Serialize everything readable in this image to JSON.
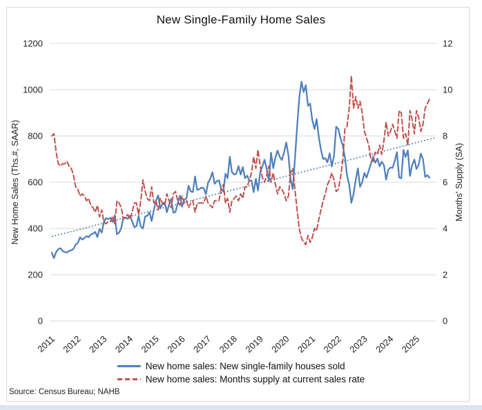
{
  "chart_data": {
    "type": "line",
    "title": "New Single-Family Home Sales",
    "source": "Source: Census Bureau; NAHB",
    "x": {
      "unit": "month",
      "start": "2011-01",
      "end": "2025-07",
      "tick_labels": [
        "2011",
        "2012",
        "2013",
        "2014",
        "2015",
        "2016",
        "2017",
        "2018",
        "2019",
        "2020",
        "2021",
        "2022",
        "2023",
        "2024",
        "2025"
      ]
    },
    "left_axis": {
      "label": "New Home Sales (Ths.#, SAAR)",
      "ticks": [
        0,
        200,
        400,
        600,
        800,
        1000,
        1200
      ],
      "lim": [
        0,
        1200
      ]
    },
    "right_axis": {
      "label": "Months' Supply (SA)",
      "ticks": [
        0,
        2,
        4,
        6,
        8,
        10,
        12
      ],
      "lim": [
        0,
        12
      ]
    },
    "grid": true,
    "legend_position": "bottom-center",
    "series": [
      {
        "name": "New home sales: New single-family houses sold",
        "axis": "left",
        "line_style": "solid",
        "color": "#4f81bd",
        "monthly_values": [
          295,
          272,
          298,
          310,
          315,
          302,
          298,
          296,
          303,
          306,
          312,
          330,
          337,
          362,
          352,
          358,
          367,
          362,
          374,
          378,
          385,
          363,
          398,
          382,
          428,
          445,
          440,
          446,
          429,
          457,
          375,
          382,
          402,
          448,
          445,
          442,
          455,
          432,
          405,
          410,
          455,
          408,
          400,
          452,
          455,
          470,
          432,
          480,
          520,
          543,
          487,
          508,
          512,
          470,
          503,
          528,
          468,
          472,
          508,
          542,
          494,
          525,
          530,
          585,
          560,
          558,
          625,
          567,
          570,
          577,
          573,
          548,
          598,
          615,
          643,
          593,
          605,
          608,
          572,
          560,
          637,
          618,
          710,
          643,
          633,
          637,
          670,
          633,
          665,
          618,
          628,
          607,
          607,
          557,
          615,
          564,
          644,
          668,
          697,
          656,
          604,
          728,
          661,
          706,
          737,
          710,
          696,
          729,
          772,
          716,
          612,
          570,
          700,
          838,
          965,
          1035,
          990,
          1020,
          930,
          940,
          870,
          830,
          873,
          795,
          740,
          700,
          704,
          686,
          725,
          668,
          715,
          840,
          830,
          790,
          760,
          710,
          630,
          590,
          511,
          550,
          610,
          660,
          580,
          600,
          640,
          620,
          650,
          679,
          710,
          684,
          702,
          669,
          689,
          674,
          611,
          654,
          664,
          662,
          693,
          730,
          621,
          617,
          739,
          709,
          738,
          627,
          674,
          698,
          657,
          676,
          724,
          700,
          623,
          630,
          620
        ]
      },
      {
        "name": "New home sales: Months supply at current sales rate",
        "axis": "right",
        "line_style": "dashed",
        "color": "#c0504d",
        "monthly_values": [
          8.0,
          8.1,
          7.3,
          6.8,
          6.7,
          6.8,
          6.8,
          6.9,
          6.7,
          6.6,
          6.3,
          5.8,
          5.7,
          5.4,
          5.5,
          5.4,
          5.2,
          5.3,
          5.0,
          4.9,
          4.7,
          5.0,
          4.5,
          4.8,
          4.3,
          4.2,
          4.3,
          4.3,
          4.5,
          4.2,
          5.2,
          5.1,
          4.9,
          4.4,
          4.5,
          4.6,
          4.4,
          4.7,
          5.1,
          5.1,
          4.6,
          5.2,
          6.1,
          5.6,
          5.3,
          5.2,
          5.8,
          5.1,
          5.2,
          4.8,
          5.3,
          5.1,
          5.0,
          5.5,
          5.2,
          4.9,
          5.5,
          5.6,
          5.2,
          5.0,
          5.4,
          5.1,
          5.2,
          4.9,
          5.1,
          5.2,
          4.7,
          5.1,
          5.1,
          5.1,
          5.1,
          5.4,
          5.1,
          5.0,
          4.9,
          5.2,
          5.2,
          5.2,
          5.7,
          5.9,
          5.1,
          5.3,
          4.7,
          5.2,
          5.3,
          5.4,
          5.2,
          5.5,
          5.3,
          5.8,
          5.8,
          6.1,
          6.4,
          7.1,
          6.6,
          7.4,
          6.7,
          6.2,
          6.0,
          6.3,
          6.7,
          6.0,
          6.4,
          5.9,
          5.5,
          5.8,
          5.7,
          5.5,
          5.2,
          5.4,
          6.4,
          6.6,
          5.7,
          4.8,
          4.0,
          3.6,
          3.4,
          3.3,
          3.7,
          3.4,
          3.6,
          4.0,
          3.9,
          4.4,
          4.8,
          5.2,
          5.5,
          5.9,
          6.1,
          6.4,
          6.1,
          5.6,
          5.7,
          6.2,
          6.9,
          8.3,
          8.4,
          9.2,
          10.6,
          9.2,
          9.7,
          9.2,
          9.5,
          9.0,
          8.2,
          7.9,
          7.6,
          7.0,
          6.9,
          7.3,
          7.2,
          7.6,
          7.2,
          7.8,
          8.6,
          8.0,
          8.2,
          8.5,
          8.2,
          7.9,
          9.1,
          9.0,
          7.9,
          8.1,
          7.6,
          9.1,
          8.7,
          8.1,
          9.1,
          8.8,
          8.2,
          8.5,
          9.2,
          9.4,
          9.6
        ]
      }
    ],
    "trendline": {
      "applies_to": "New home sales: New single-family houses sold",
      "axis": "left",
      "line_style": "dotted",
      "color": "#4472a8",
      "start_value": 365,
      "end_value": 792
    },
    "colors": {
      "gridline": "#d9d9d9",
      "frame_border": "#d9d9d9",
      "bottom_strip": "#dce6f1"
    }
  }
}
